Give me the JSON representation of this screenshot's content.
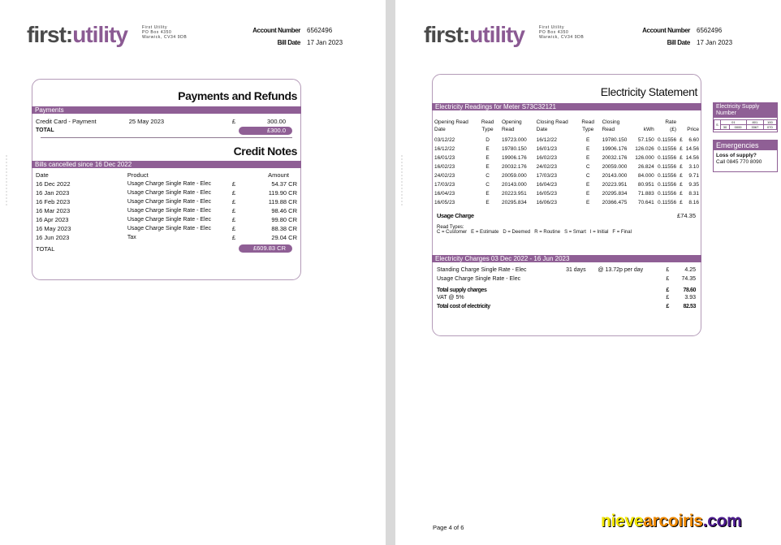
{
  "brand": {
    "logo_a": "first",
    "logo_sep": ":",
    "logo_b": "utility",
    "address": [
      "First Utility",
      "PO Box 4350",
      "Warwick, CV34 9DB"
    ]
  },
  "account": {
    "number_label": "Account Number",
    "number": "6562496",
    "date_label": "Bill Date",
    "date": "17 Jan 2023"
  },
  "payments": {
    "title": "Payments and Refunds",
    "bar": "Payments",
    "row": {
      "desc": "Credit Card - Payment",
      "date": "25 May 2023",
      "cur": "£",
      "amount": "300.00"
    },
    "total_label": "TOTAL",
    "total": "£300.0"
  },
  "credit": {
    "title": "Credit Notes",
    "bar": "Bills cancelled since 16 Dec 2022",
    "headers": [
      "Date",
      "Product",
      "Amount"
    ],
    "rows": [
      [
        "16 Dec 2022",
        "Usage Charge Single Rate - Elec",
        "£",
        "54.37 CR"
      ],
      [
        "16 Jan 2023",
        "Usage Charge Single Rate - Elec",
        "£",
        "119.90 CR"
      ],
      [
        "16 Feb 2023",
        "Usage Charge Single Rate - Elec",
        "£",
        "119.88 CR"
      ],
      [
        "16 Mar 2023",
        "Usage Charge Single Rate - Elec",
        "£",
        "98.46 CR"
      ],
      [
        "16 Apr 2023",
        "Usage Charge Single Rate - Elec",
        "£",
        "99.80 CR"
      ],
      [
        "16 May 2023",
        "Usage Charge Single Rate - Elec",
        "£",
        "88.38 CR"
      ],
      [
        "16 Jun 2023",
        "Tax",
        "£",
        "29.04 CR"
      ]
    ],
    "total_label": "TOTAL",
    "total": "£609.83 CR"
  },
  "statement": {
    "title": "Electricity Statement",
    "readings_bar": "Electricity Readings for Meter S73C32121",
    "headers": [
      "Opening Read Date",
      "Read Type",
      "Opening Read",
      "Closing Read Date",
      "Read Type",
      "Closing Read",
      "kWh",
      "Rate (£)",
      "",
      "Price"
    ],
    "rows": [
      [
        "03/12/22",
        "D",
        "19723.000",
        "16/12/22",
        "E",
        "19780.150",
        "57.150",
        "0.11556",
        "£",
        "6.60"
      ],
      [
        "16/12/22",
        "E",
        "19780.150",
        "16/01/23",
        "E",
        "19906.176",
        "126.026",
        "0.11556",
        "£",
        "14.56"
      ],
      [
        "16/01/23",
        "E",
        "19906.176",
        "16/02/23",
        "E",
        "20032.176",
        "126.000",
        "0.11556",
        "£",
        "14.56"
      ],
      [
        "16/02/23",
        "E",
        "20032.176",
        "24/02/23",
        "C",
        "20059.000",
        "26.824",
        "0.11556",
        "£",
        "3.10"
      ],
      [
        "24/02/23",
        "C",
        "20059.000",
        "17/03/23",
        "C",
        "20143.000",
        "84.000",
        "0.11556",
        "£",
        "9.71"
      ],
      [
        "17/03/23",
        "C",
        "20143.000",
        "16/04/23",
        "E",
        "20223.951",
        "80.951",
        "0.11556",
        "£",
        "9.35"
      ],
      [
        "16/04/23",
        "E",
        "20223.951",
        "16/05/23",
        "E",
        "20295.834",
        "71.883",
        "0.11556",
        "£",
        "8.31"
      ],
      [
        "16/05/23",
        "E",
        "20295.834",
        "16/06/23",
        "E",
        "20366.475",
        "70.641",
        "0.11556",
        "£",
        "8.16"
      ]
    ],
    "usage_label": "Usage Charge",
    "usage_total": "£74.35",
    "read_types_label": "Read Types:",
    "read_types": "C = Customer   E = Estimate   D = Deemed   R = Routine   S = Smart   I = Initial   F = Final",
    "charges_bar": "Electricity Charges 03 Dec 2022 - 16 Jun 2023",
    "charges": [
      {
        "label": "Standing Charge Single Rate - Elec",
        "days": "31 days",
        "rate": "@ 13.72p per day",
        "cur": "£",
        "amount": "4.25",
        "bold": false
      },
      {
        "label": "Usage Charge Single Rate - Elec",
        "days": "",
        "rate": "",
        "cur": "£",
        "amount": "74.35",
        "bold": false
      },
      {
        "label": "Total supply charges",
        "days": "",
        "rate": "",
        "cur": "£",
        "amount": "78.60",
        "bold": true
      },
      {
        "label": "VAT @ 5%",
        "days": "",
        "rate": "",
        "cur": "£",
        "amount": "3.93",
        "bold": false
      },
      {
        "label": "Total cost of electricity",
        "days": "",
        "rate": "",
        "cur": "£",
        "amount": "82.53",
        "bold": true
      }
    ]
  },
  "supply": {
    "title": "Electricity Supply Number",
    "s": "S",
    "top": [
      "01",
      "801",
      "100"
    ],
    "bottom": [
      "30",
      "0000",
      "3367",
      "070"
    ]
  },
  "emergency": {
    "title": "Emergencies",
    "q": "Loss of supply?",
    "call": "Call 0845 770 8090"
  },
  "footer": {
    "page": "Page 4 of 6"
  },
  "watermark": {
    "a": "nieve",
    "b": "arcoiris",
    "c": ".com",
    "colors": [
      "#f2e600",
      "#f08a00",
      "#4b1a8c"
    ]
  }
}
